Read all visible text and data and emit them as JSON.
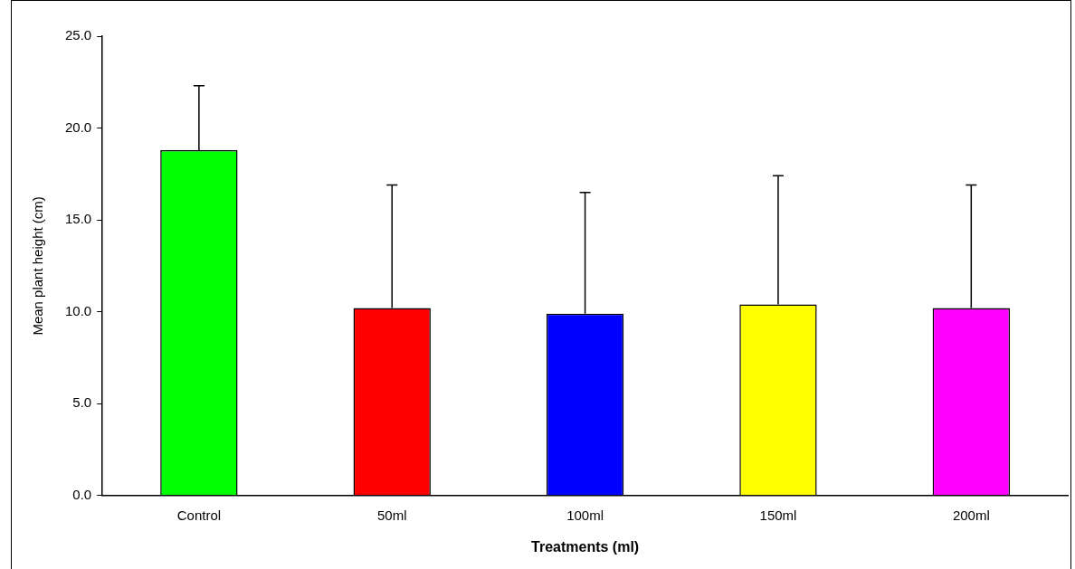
{
  "chart_data": {
    "type": "bar",
    "xlabel": "Treatments (ml)",
    "ylabel": "Mean plant height (cm)",
    "categories": [
      "Control",
      "50ml",
      "100ml",
      "150ml",
      "200ml"
    ],
    "values": [
      18.8,
      10.2,
      9.9,
      10.4,
      10.2
    ],
    "colors": [
      "#00ff00",
      "#ff0000",
      "#0000ff",
      "#ffff00",
      "#ff00ff"
    ],
    "errors": [
      [
        18.8,
        22.3
      ],
      [
        10.2,
        16.9
      ],
      [
        9.9,
        16.5
      ],
      [
        10.4,
        17.4
      ],
      [
        10.2,
        16.9
      ]
    ],
    "ylim": [
      0,
      25
    ],
    "yticks": [
      {
        "value": 0,
        "label": "0.0"
      },
      {
        "value": 5,
        "label": "5.0"
      },
      {
        "value": 10,
        "label": "10.0"
      },
      {
        "value": 15,
        "label": "15.0"
      },
      {
        "value": 20,
        "label": "20.0"
      },
      {
        "value": 25,
        "label": "25.0"
      }
    ],
    "grid": false,
    "legend": false
  }
}
